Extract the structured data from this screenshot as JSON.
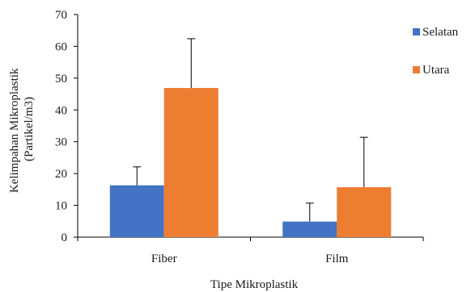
{
  "chart_data": {
    "type": "bar",
    "categories": [
      "Fiber",
      "Film"
    ],
    "series": [
      {
        "name": "Selatan",
        "values": [
          16.3,
          4.9
        ],
        "error": [
          5.8,
          5.8
        ],
        "color": "#4472c4"
      },
      {
        "name": "Utara",
        "values": [
          46.9,
          15.7
        ],
        "error": [
          15.5,
          15.7
        ],
        "color": "#ed7d31"
      }
    ],
    "xlabel": "Tipe Mikroplastik",
    "ylabel_lines": [
      "Kelimpahan Mikroplastik",
      "(Partikel/m3)"
    ],
    "ylim": [
      0,
      70
    ],
    "yticks": [
      "0",
      "10",
      "20",
      "30",
      "40",
      "50",
      "60",
      "70"
    ],
    "grid": false,
    "legend": "right"
  }
}
